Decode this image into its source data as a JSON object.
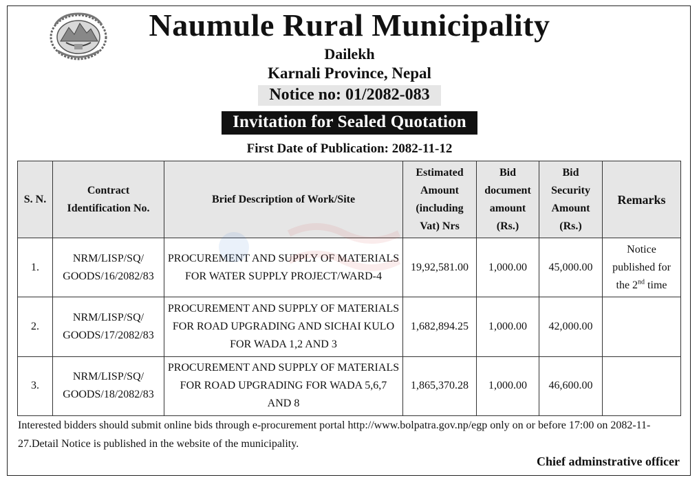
{
  "header": {
    "title": "Naumule Rural Municipality",
    "district": "Dailekh",
    "province": "Karnali Province, Nepal",
    "notice_no": "Notice no: 01/2082-083",
    "invitation": "Invitation for Sealed Quotation",
    "publication_date": "First Date of Publication: 2082-11-12"
  },
  "table": {
    "headers": {
      "sn": "S. N.",
      "contract_id": "Contract Identification No.",
      "description": "Brief Description of Work/Site",
      "estimated": "Estimated Amount (including Vat) Nrs",
      "bid_doc": "Bid document amount (Rs.)",
      "bid_security": "Bid Security Amount (Rs.)",
      "remarks": "Remarks"
    },
    "rows": [
      {
        "sn": "1.",
        "contract_id": "NRM/LISP/SQ/ GOODS/16/2082/83",
        "description": "PROCUREMENT AND SUPPLY OF MATERIALS FOR WATER SUPPLY PROJECT/WARD-4",
        "estimated": "19,92,581.00",
        "bid_doc": "1,000.00",
        "bid_security": "45,000.00",
        "remarks_pre": "Notice published for the 2",
        "remarks_sup": "nd",
        "remarks_post": " time"
      },
      {
        "sn": "2.",
        "contract_id": "NRM/LISP/SQ/ GOODS/17/2082/83",
        "description": "PROCUREMENT AND SUPPLY OF MATERIALS FOR ROAD UPGRADING AND SICHAI KULO FOR WADA 1,2 AND 3",
        "estimated": "1,682,894.25",
        "bid_doc": "1,000.00",
        "bid_security": "42,000.00",
        "remarks": ""
      },
      {
        "sn": "3.",
        "contract_id": "NRM/LISP/SQ/ GOODS/18/2082/83",
        "description": "PROCUREMENT AND SUPPLY OF MATERIALS FOR ROAD UPGRADING FOR WADA 5,6,7 AND 8",
        "estimated": "1,865,370.28",
        "bid_doc": "1,000.00",
        "bid_security": "46,600.00",
        "remarks": ""
      }
    ]
  },
  "footer": {
    "text": "Interested bidders should submit online bids through e-procurement portal http://www.bolpatra.gov.np/egp only on or before 17:00 on 2082-11-27.Detail Notice is published in the website of the municipality.",
    "signatory": "Chief adminstrative officer"
  },
  "colors": {
    "header_fill": "#e6e6e6",
    "banner_fill": "#111111",
    "banner_text": "#ffffff"
  },
  "icons": {
    "emblem": "nepal-emblem-icon"
  }
}
